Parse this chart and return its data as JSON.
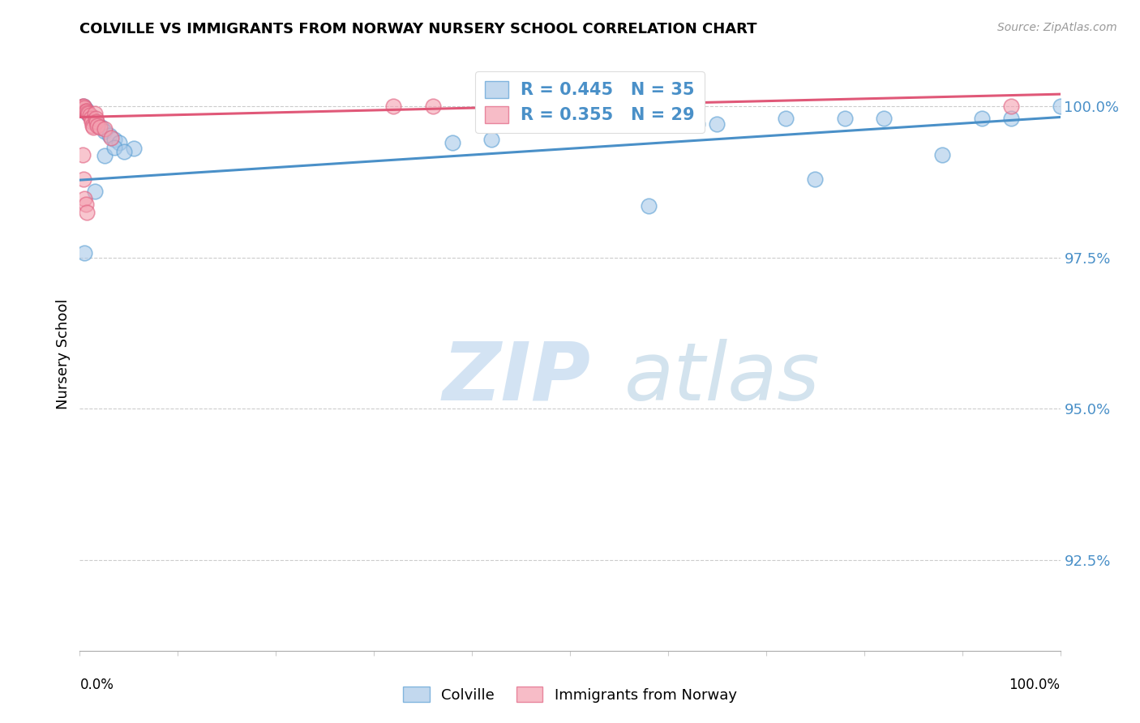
{
  "title": "COLVILLE VS IMMIGRANTS FROM NORWAY NURSERY SCHOOL CORRELATION CHART",
  "source": "Source: ZipAtlas.com",
  "ylabel": "Nursery School",
  "ytick_labels": [
    "100.0%",
    "97.5%",
    "95.0%",
    "92.5%"
  ],
  "ytick_values": [
    1.0,
    0.975,
    0.95,
    0.925
  ],
  "xlim": [
    0.0,
    1.0
  ],
  "ylim": [
    0.91,
    1.008
  ],
  "blue_R": 0.445,
  "blue_N": 35,
  "pink_R": 0.355,
  "pink_N": 29,
  "blue_color": "#a8c8e8",
  "pink_color": "#f4a0b0",
  "blue_edge_color": "#5a9fd4",
  "pink_edge_color": "#e06080",
  "blue_line_color": "#4a90c8",
  "pink_line_color": "#e05878",
  "blue_scatter_x": [
    0.002,
    0.003,
    0.004,
    0.005,
    0.006,
    0.007,
    0.008,
    0.01,
    0.012,
    0.015,
    0.018,
    0.022,
    0.025,
    0.03,
    0.035,
    0.04,
    0.055,
    0.38,
    0.42,
    0.58,
    0.63,
    0.65,
    0.72,
    0.75,
    0.78,
    0.82,
    0.88,
    0.92,
    0.95,
    1.0,
    0.005,
    0.015,
    0.025,
    0.035,
    0.045
  ],
  "blue_scatter_y": [
    0.9998,
    0.9998,
    1.0,
    0.9998,
    0.9995,
    0.9992,
    0.9988,
    0.9985,
    0.9982,
    0.9975,
    0.997,
    0.9965,
    0.9958,
    0.9952,
    0.9945,
    0.994,
    0.993,
    0.994,
    0.9945,
    0.9835,
    0.997,
    0.997,
    0.998,
    0.988,
    0.998,
    0.998,
    0.992,
    0.998,
    0.998,
    1.0,
    0.9758,
    0.986,
    0.9918,
    0.9932,
    0.9925
  ],
  "pink_scatter_x": [
    0.001,
    0.002,
    0.003,
    0.004,
    0.005,
    0.006,
    0.007,
    0.008,
    0.009,
    0.01,
    0.011,
    0.012,
    0.013,
    0.014,
    0.015,
    0.016,
    0.017,
    0.018,
    0.02,
    0.025,
    0.032,
    0.32,
    0.36,
    0.95,
    0.003,
    0.004,
    0.005,
    0.006,
    0.007
  ],
  "pink_scatter_y": [
    0.9998,
    0.9998,
    1.0,
    1.0,
    0.9998,
    0.9992,
    0.9992,
    0.999,
    0.9988,
    0.9985,
    0.998,
    0.9975,
    0.9968,
    0.9965,
    0.9988,
    0.998,
    0.9975,
    0.9968,
    0.9965,
    0.9962,
    0.9948,
    1.0,
    1.0,
    1.0,
    0.992,
    0.988,
    0.9848,
    0.9838,
    0.9825
  ],
  "blue_trendline_x": [
    0.0,
    1.0
  ],
  "blue_trendline_y": [
    0.9878,
    0.9982
  ],
  "pink_trendline_x": [
    0.0,
    1.0
  ],
  "pink_trendline_y": [
    0.9982,
    1.002
  ]
}
